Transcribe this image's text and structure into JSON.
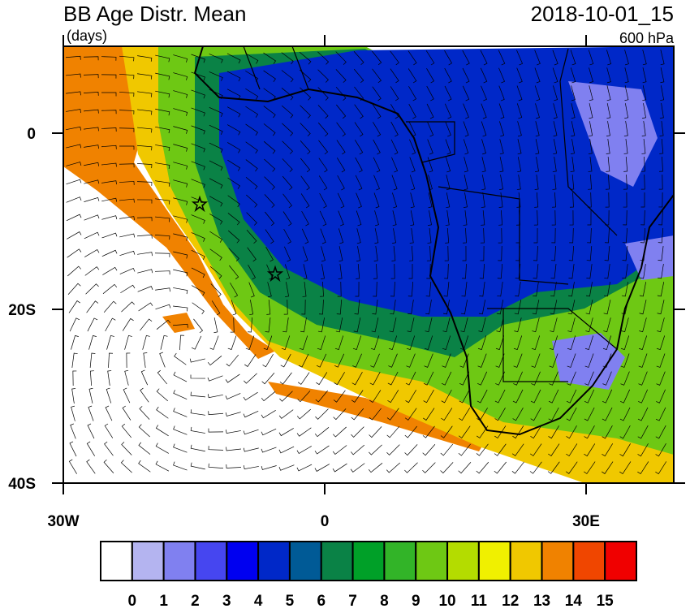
{
  "header": {
    "title": "BB Age Distr. Mean",
    "units": "(days)",
    "date": "2018-10-01_15",
    "level": "600 hPa"
  },
  "axes": {
    "y_labels": [
      "0",
      "20S",
      "40S"
    ],
    "x_labels": [
      "30W",
      "0",
      "30E"
    ]
  },
  "colorbar": {
    "labels": [
      0,
      1,
      2,
      3,
      4,
      5,
      6,
      7,
      8,
      9,
      10,
      11,
      12,
      13,
      14,
      15
    ],
    "colors": [
      "#ffffff",
      "#b4b4f0",
      "#8080f0",
      "#4646f0",
      "#0000f0",
      "#0028c8",
      "#005a96",
      "#0a8246",
      "#00a028",
      "#32b428",
      "#6ec814",
      "#b4dc00",
      "#f0f000",
      "#f0c800",
      "#f08200",
      "#f04600",
      "#f00000"
    ]
  }
}
